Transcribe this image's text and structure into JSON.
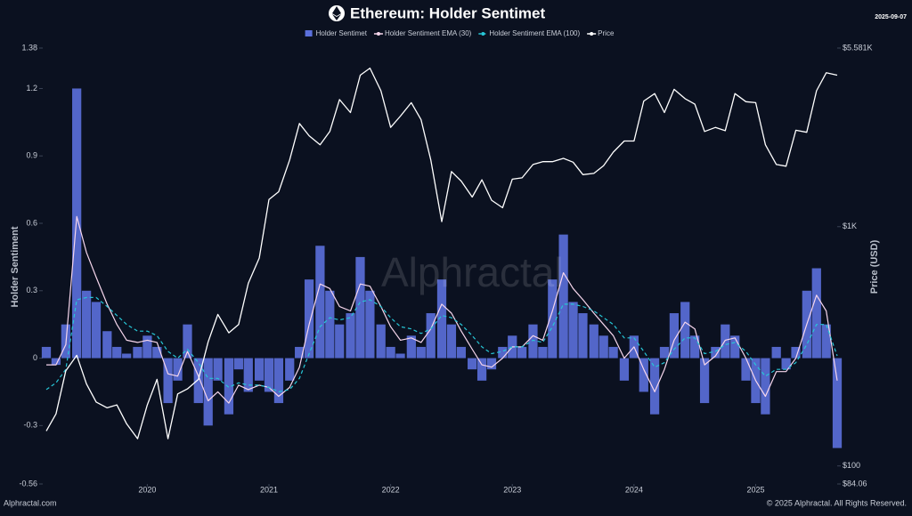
{
  "date": "2025-09-07",
  "watermark": "Alphractal",
  "footer_left": "Alphractal.com",
  "footer_right": "© 2025 Alphractal. All Rights Reserved.",
  "chart_data": {
    "type": "combo",
    "title": "Ethereum: Holder Sentimet",
    "y_label": "Holder Sentiment",
    "y2_label": "Price (USD)",
    "x": [
      2019.17,
      2019.25,
      2019.33,
      2019.42,
      2019.5,
      2019.58,
      2019.67,
      2019.75,
      2019.83,
      2019.92,
      2020.0,
      2020.08,
      2020.17,
      2020.25,
      2020.33,
      2020.42,
      2020.5,
      2020.58,
      2020.67,
      2020.75,
      2020.83,
      2020.92,
      2021.0,
      2021.08,
      2021.17,
      2021.25,
      2021.33,
      2021.42,
      2021.5,
      2021.58,
      2021.67,
      2021.75,
      2021.83,
      2021.92,
      2022.0,
      2022.08,
      2022.17,
      2022.25,
      2022.33,
      2022.42,
      2022.5,
      2022.58,
      2022.67,
      2022.75,
      2022.83,
      2022.92,
      2023.0,
      2023.08,
      2023.17,
      2023.25,
      2023.33,
      2023.42,
      2023.5,
      2023.58,
      2023.67,
      2023.75,
      2023.83,
      2023.92,
      2024.0,
      2024.08,
      2024.17,
      2024.25,
      2024.33,
      2024.42,
      2024.5,
      2024.58,
      2024.67,
      2024.75,
      2024.83,
      2024.92,
      2025.0,
      2025.08,
      2025.17,
      2025.25,
      2025.33,
      2025.42,
      2025.5,
      2025.58,
      2025.67
    ],
    "xlim": [
      2019.17,
      2025.67
    ],
    "xticks": [
      2020,
      2021,
      2022,
      2023,
      2024,
      2025
    ],
    "ylim": [
      -0.56,
      1.38
    ],
    "yticks": [
      1.38,
      1.2,
      0.9,
      0.6,
      0.3,
      0,
      -0.3,
      -0.56
    ],
    "y2lim": [
      84.06,
      5581
    ],
    "y2_log": true,
    "y2ticks": [
      {
        "value": 5581,
        "label": "$5.581K"
      },
      {
        "value": 1000,
        "label": "$1K"
      },
      {
        "value": 100,
        "label": "$100"
      },
      {
        "value": 84.06,
        "label": "$84.06"
      }
    ],
    "series": [
      {
        "name": "Holder Sentimet",
        "type": "bar",
        "color": "#5b70dc",
        "values": [
          0.05,
          -0.03,
          0.15,
          1.2,
          0.3,
          0.25,
          0.12,
          0.05,
          0.02,
          0.05,
          0.1,
          0.05,
          -0.2,
          -0.1,
          0.15,
          -0.2,
          -0.3,
          -0.1,
          -0.25,
          -0.05,
          -0.15,
          -0.1,
          -0.15,
          -0.2,
          -0.1,
          0.05,
          0.35,
          0.5,
          0.3,
          0.15,
          0.2,
          0.45,
          0.3,
          0.15,
          0.05,
          0.02,
          0.1,
          0.05,
          0.2,
          0.35,
          0.15,
          0.05,
          -0.05,
          -0.1,
          -0.05,
          0.05,
          0.1,
          0.05,
          0.15,
          0.05,
          0.35,
          0.55,
          0.25,
          0.2,
          0.15,
          0.1,
          0.05,
          -0.1,
          0.1,
          -0.15,
          -0.25,
          0.05,
          0.2,
          0.25,
          0.1,
          -0.2,
          0.05,
          0.15,
          0.1,
          -0.1,
          -0.2,
          -0.25,
          0.05,
          -0.05,
          0.05,
          0.3,
          0.4,
          0.15,
          -0.4
        ]
      },
      {
        "name": "Holder Sentiment EMA (30)",
        "type": "line",
        "color": "#f6d6ec",
        "dashed": false,
        "values": [
          -0.03,
          -0.03,
          0.06,
          0.63,
          0.47,
          0.36,
          0.24,
          0.15,
          0.08,
          0.07,
          0.08,
          0.07,
          -0.07,
          -0.08,
          0.03,
          -0.08,
          -0.19,
          -0.15,
          -0.2,
          -0.12,
          -0.14,
          -0.12,
          -0.13,
          -0.17,
          -0.13,
          -0.04,
          0.15,
          0.33,
          0.31,
          0.23,
          0.21,
          0.33,
          0.32,
          0.23,
          0.14,
          0.08,
          0.09,
          0.07,
          0.13,
          0.24,
          0.2,
          0.12,
          0.04,
          -0.03,
          -0.04,
          0,
          0.05,
          0.05,
          0.1,
          0.08,
          0.21,
          0.38,
          0.31,
          0.26,
          0.2,
          0.15,
          0.1,
          0,
          0.05,
          -0.05,
          -0.15,
          -0.05,
          0.08,
          0.16,
          0.13,
          -0.03,
          0.01,
          0.08,
          0.09,
          0,
          -0.1,
          -0.17,
          -0.06,
          -0.06,
          0,
          0.15,
          0.28,
          0.21,
          -0.1
        ]
      },
      {
        "name": "Holder Sentiment EMA (100)",
        "type": "line",
        "color": "#27c6d6",
        "dashed": true,
        "values": [
          -0.14,
          -0.11,
          -0.05,
          0.26,
          0.27,
          0.27,
          0.23,
          0.19,
          0.15,
          0.12,
          0.12,
          0.1,
          0.03,
          0,
          0.04,
          -0.02,
          -0.09,
          -0.09,
          -0.13,
          -0.11,
          -0.12,
          -0.12,
          -0.13,
          -0.15,
          -0.14,
          -0.09,
          0.02,
          0.14,
          0.18,
          0.17,
          0.18,
          0.25,
          0.26,
          0.23,
          0.18,
          0.14,
          0.13,
          0.11,
          0.13,
          0.19,
          0.18,
          0.15,
          0.1,
          0.05,
          0.02,
          0.03,
          0.05,
          0.05,
          0.08,
          0.07,
          0.14,
          0.24,
          0.24,
          0.23,
          0.21,
          0.18,
          0.15,
          0.09,
          0.09,
          0.03,
          -0.04,
          -0.02,
          0.04,
          0.09,
          0.09,
          0.02,
          0.03,
          0.06,
          0.07,
          0.03,
          -0.03,
          -0.08,
          -0.05,
          -0.05,
          -0.02,
          0.06,
          0.15,
          0.15,
          0.01
        ]
      },
      {
        "name": "Price",
        "type": "line",
        "axis": "y2",
        "color": "#ffffff",
        "dashed": false,
        "values": [
          140,
          165,
          250,
          290,
          220,
          185,
          175,
          180,
          150,
          130,
          180,
          230,
          130,
          200,
          210,
          230,
          330,
          430,
          360,
          390,
          580,
          740,
          1300,
          1400,
          1900,
          2700,
          2400,
          2200,
          2500,
          3400,
          3000,
          4300,
          4600,
          3700,
          2600,
          2900,
          3300,
          2800,
          1900,
          1050,
          1700,
          1550,
          1330,
          1570,
          1290,
          1200,
          1580,
          1600,
          1820,
          1870,
          1870,
          1930,
          1860,
          1650,
          1670,
          1800,
          2050,
          2280,
          2280,
          3350,
          3600,
          3000,
          3750,
          3430,
          3250,
          2500,
          2600,
          2520,
          3600,
          3330,
          3300,
          2200,
          1820,
          1790,
          2530,
          2480,
          3700,
          4400,
          4300
        ]
      }
    ]
  }
}
